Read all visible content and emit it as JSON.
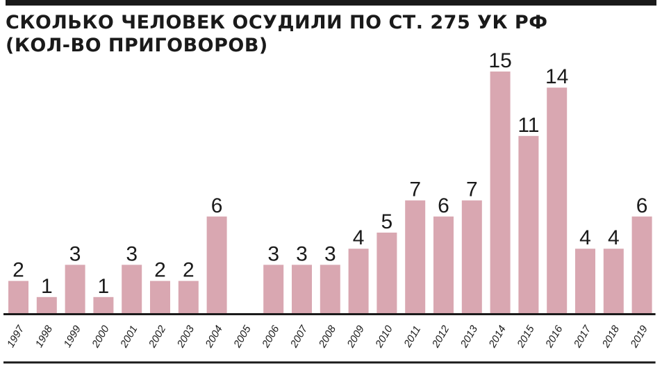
{
  "title_line1": "СКОЛЬКО ЧЕЛОВЕК ОСУДИЛИ ПО СТ. 275 УК РФ",
  "title_line2": "(КОЛ-ВО ПРИГОВОРОВ)",
  "chart_data": {
    "type": "bar",
    "title": "СКОЛЬКО ЧЕЛОВЕК ОСУДИЛИ ПО СТ. 275 УК РФ (КОЛ-ВО ПРИГОВОРОВ)",
    "categories": [
      "1997",
      "1998",
      "1999",
      "2000",
      "2001",
      "2002",
      "2003",
      "2004",
      "2005",
      "2006",
      "2007",
      "2008",
      "2009",
      "2010",
      "2011",
      "2012",
      "2013",
      "2014",
      "2015",
      "2016",
      "2017",
      "2018",
      "2019"
    ],
    "values": [
      2,
      1,
      3,
      1,
      3,
      2,
      2,
      6,
      null,
      3,
      3,
      3,
      4,
      5,
      7,
      6,
      7,
      15,
      11,
      14,
      4,
      4,
      6
    ],
    "ylim": [
      0,
      15
    ],
    "grid": false,
    "legend": "none",
    "bar_color": "#d9a7b1",
    "text_color": "#1a1a1a"
  }
}
